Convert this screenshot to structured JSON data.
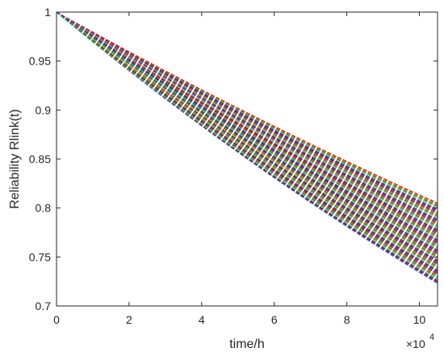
{
  "chart_data": {
    "type": "line",
    "title": "",
    "xlabel": "time/h",
    "ylabel": "Reliability  Rlink(t)",
    "x_scale_label": "×10",
    "x_scale_exponent": "4",
    "xlim": [
      0,
      10.5
    ],
    "ylim": [
      0.7,
      1.0
    ],
    "x_ticks": [
      "0",
      "2",
      "4",
      "6",
      "8",
      "10"
    ],
    "y_ticks": [
      "0.7",
      "0.75",
      "0.8",
      "0.85",
      "0.9",
      "0.95",
      "1"
    ],
    "x_tick_values": [
      0,
      2,
      4,
      6,
      8,
      10
    ],
    "y_tick_values": [
      0.7,
      0.75,
      0.8,
      0.85,
      0.9,
      0.95,
      1.0
    ],
    "grid": false,
    "legend": "none",
    "line_style": "dashed",
    "series_count": 80,
    "curve_form": "exponential decay from R=1 at t=0",
    "end_value_range_at_x_10.5": [
      0.723,
      0.805
    ],
    "palette": [
      "#0072BD",
      "#D95319",
      "#EDB120",
      "#7E2F8E",
      "#77AC30",
      "#4DBEEE",
      "#A2142F",
      "#FF0000",
      "#00A651",
      "#1F4E9E"
    ]
  }
}
